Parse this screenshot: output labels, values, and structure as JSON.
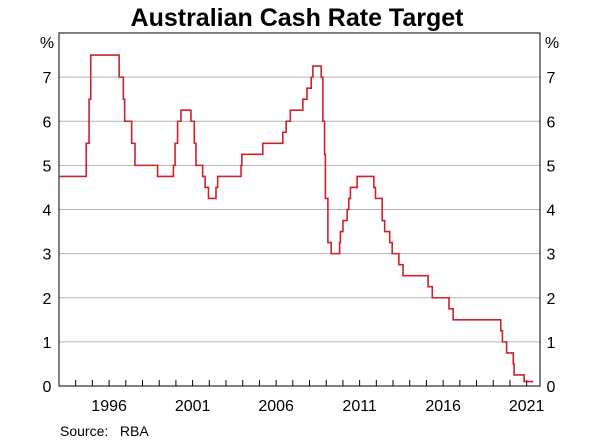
{
  "chart_data": {
    "type": "line",
    "title": "Australian Cash Rate Target",
    "y_unit_left": "%",
    "y_unit_right": "%",
    "source": "Source:   RBA",
    "xlim": [
      1993.0,
      2021.8
    ],
    "ylim": [
      0,
      8
    ],
    "y_ticks": [
      0,
      1,
      2,
      3,
      4,
      5,
      6,
      7
    ],
    "y_tick_labels": [
      "0",
      "1",
      "2",
      "3",
      "4",
      "5",
      "6",
      "7"
    ],
    "x_tick_labels": [
      "1996",
      "2001",
      "2006",
      "2011",
      "2016",
      "2021"
    ],
    "x_label_positions": [
      1996.0,
      2001.0,
      2006.0,
      2011.0,
      2016.0,
      2021.0
    ],
    "x_major_ticks": [
      1994,
      1995,
      1996,
      1997,
      1998,
      1999,
      2000,
      2001,
      2002,
      2003,
      2004,
      2005,
      2006,
      2007,
      2008,
      2009,
      2010,
      2011,
      2012,
      2013,
      2014,
      2015,
      2016,
      2017,
      2018,
      2019,
      2020,
      2021
    ],
    "grid": true,
    "line_color": "#d0202a",
    "series": [
      {
        "name": "",
        "points": [
          [
            1993.0,
            4.75
          ],
          [
            1994.63,
            5.5
          ],
          [
            1994.8,
            6.5
          ],
          [
            1994.9,
            7.5
          ],
          [
            1996.6,
            7.0
          ],
          [
            1996.85,
            6.5
          ],
          [
            1996.93,
            6.0
          ],
          [
            1997.35,
            5.5
          ],
          [
            1997.55,
            5.0
          ],
          [
            1998.9,
            4.75
          ],
          [
            1999.85,
            5.0
          ],
          [
            1999.95,
            5.5
          ],
          [
            2000.1,
            6.0
          ],
          [
            2000.3,
            6.25
          ],
          [
            2000.9,
            6.0
          ],
          [
            2001.1,
            5.5
          ],
          [
            2001.2,
            5.0
          ],
          [
            2001.6,
            4.75
          ],
          [
            2001.75,
            4.5
          ],
          [
            2001.95,
            4.25
          ],
          [
            2002.4,
            4.5
          ],
          [
            2002.5,
            4.75
          ],
          [
            2003.9,
            5.0
          ],
          [
            2003.95,
            5.25
          ],
          [
            2005.2,
            5.5
          ],
          [
            2006.4,
            5.75
          ],
          [
            2006.6,
            6.0
          ],
          [
            2006.85,
            6.25
          ],
          [
            2007.6,
            6.5
          ],
          [
            2007.85,
            6.75
          ],
          [
            2008.1,
            7.0
          ],
          [
            2008.2,
            7.25
          ],
          [
            2008.7,
            7.0
          ],
          [
            2008.8,
            6.0
          ],
          [
            2008.9,
            5.25
          ],
          [
            2008.95,
            4.25
          ],
          [
            2009.1,
            3.25
          ],
          [
            2009.3,
            3.0
          ],
          [
            2009.8,
            3.25
          ],
          [
            2009.85,
            3.5
          ],
          [
            2010.0,
            3.75
          ],
          [
            2010.25,
            4.0
          ],
          [
            2010.35,
            4.25
          ],
          [
            2010.45,
            4.5
          ],
          [
            2010.85,
            4.75
          ],
          [
            2011.85,
            4.5
          ],
          [
            2011.95,
            4.25
          ],
          [
            2012.35,
            3.75
          ],
          [
            2012.5,
            3.5
          ],
          [
            2012.8,
            3.25
          ],
          [
            2012.95,
            3.0
          ],
          [
            2013.35,
            2.75
          ],
          [
            2013.6,
            2.5
          ],
          [
            2015.1,
            2.25
          ],
          [
            2015.35,
            2.0
          ],
          [
            2016.35,
            1.75
          ],
          [
            2016.6,
            1.5
          ],
          [
            2019.45,
            1.25
          ],
          [
            2019.55,
            1.0
          ],
          [
            2019.8,
            0.75
          ],
          [
            2020.2,
            0.5
          ],
          [
            2020.25,
            0.25
          ],
          [
            2020.85,
            0.1
          ],
          [
            2021.4,
            0.1
          ]
        ]
      }
    ]
  }
}
